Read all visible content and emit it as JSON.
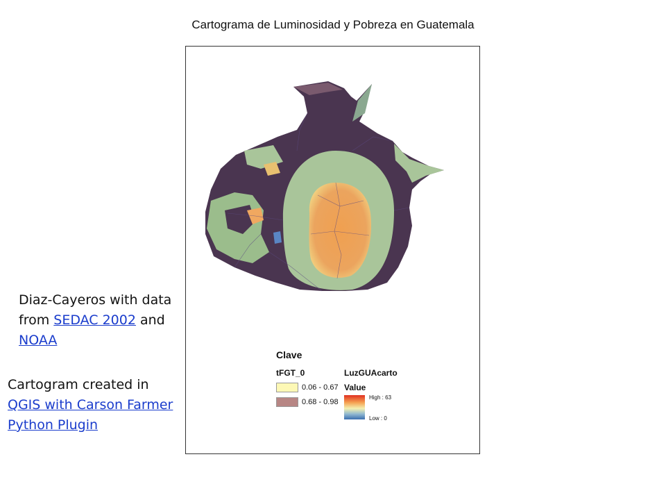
{
  "title": "Cartograma de Luminosidad y Pobreza en Guatemala",
  "credits": {
    "line1_prefix": "Diaz-Cayeros with data from",
    "link_sedac": "SEDAC 2002",
    "and_word": "and",
    "link_noaa": "NOAA",
    "line2_prefix": "Cartogram created in",
    "link_qgis": "QGIS with Carson Farmer Python Plugin"
  },
  "legend": {
    "title": "Clave",
    "field1": "tFGT_0",
    "class1": "0.06 - 0.67",
    "class2": "0.68 - 0.98",
    "field2": "LuzGUAcarto",
    "value_label": "Value",
    "high": "High : 63",
    "low": "Low : 0"
  },
  "colors": {
    "low_poverty": "#fdf8b5",
    "high_poverty": "#b78684",
    "dark_region": "#4a3550",
    "green_region": "#a9c59a",
    "bright_core": "#eea55c"
  }
}
